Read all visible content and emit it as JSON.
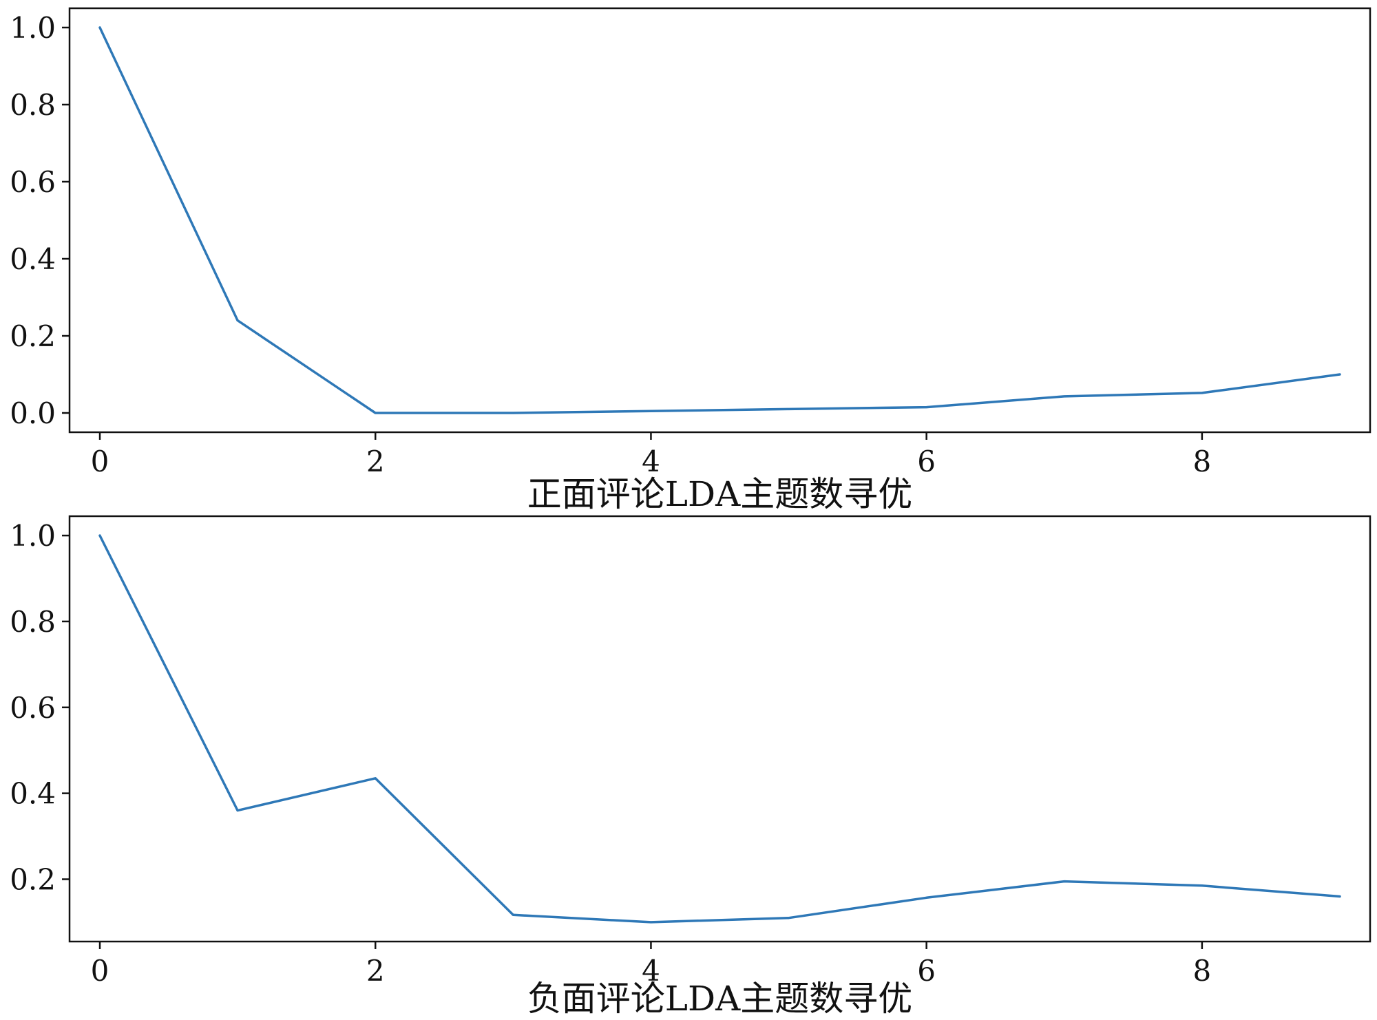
{
  "chart_data": [
    {
      "type": "line",
      "title": "",
      "xlabel": "正面评论LDA主题数寻优",
      "ylabel": "",
      "x": [
        0,
        1,
        2,
        3,
        4,
        5,
        6,
        7,
        8,
        9
      ],
      "series": [
        {
          "values": [
            1.0,
            0.24,
            0.0,
            0.0,
            0.005,
            0.01,
            0.015,
            0.043,
            0.052,
            0.1
          ],
          "color": "#2e78b7"
        }
      ],
      "xlim": [
        -0.22,
        9.22
      ],
      "ylim": [
        -0.05,
        1.05
      ],
      "xticks": [
        0,
        2,
        4,
        6,
        8
      ],
      "xtick_labels": [
        "0",
        "2",
        "4",
        "6",
        "8"
      ],
      "yticks": [
        0.0,
        0.2,
        0.4,
        0.6,
        0.8,
        1.0
      ],
      "ytick_labels": [
        "0.0",
        "0.2",
        "0.4",
        "0.6",
        "0.8",
        "1.0"
      ],
      "grid": false,
      "legend": "none"
    },
    {
      "type": "line",
      "title": "",
      "xlabel": "负面评论LDA主题数寻优",
      "ylabel": "",
      "x": [
        0,
        1,
        2,
        3,
        4,
        5,
        6,
        7,
        8,
        9
      ],
      "series": [
        {
          "values": [
            1.0,
            0.36,
            0.435,
            0.117,
            0.1,
            0.11,
            0.157,
            0.195,
            0.185,
            0.16
          ],
          "color": "#2e78b7"
        }
      ],
      "xlim": [
        -0.22,
        9.22
      ],
      "ylim": [
        0.055,
        1.045
      ],
      "xticks": [
        0,
        2,
        4,
        6,
        8
      ],
      "xtick_labels": [
        "0",
        "2",
        "4",
        "6",
        "8"
      ],
      "yticks": [
        0.2,
        0.4,
        0.6,
        0.8,
        1.0
      ],
      "ytick_labels": [
        "0.2",
        "0.4",
        "0.6",
        "0.8",
        "1.0"
      ],
      "grid": false,
      "legend": "none"
    }
  ]
}
